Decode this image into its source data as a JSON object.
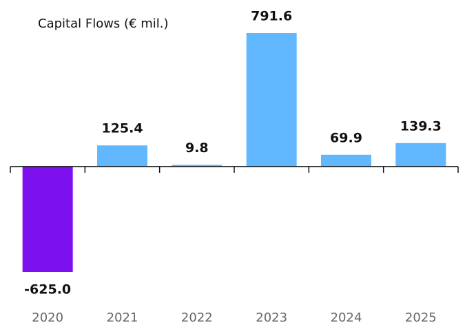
{
  "chart_data": {
    "type": "bar",
    "title": "Capital Flows (€ mil.)",
    "categories": [
      "2020",
      "2021",
      "2022",
      "2023",
      "2024",
      "2025"
    ],
    "values": [
      -625.0,
      125.4,
      9.8,
      791.6,
      69.9,
      139.3
    ],
    "value_labels": [
      "-625.0",
      "125.4",
      "9.8",
      "791.6",
      "69.9",
      "139.3"
    ],
    "color": "#62b8ff",
    "negative_color": "#7c10ee"
  }
}
